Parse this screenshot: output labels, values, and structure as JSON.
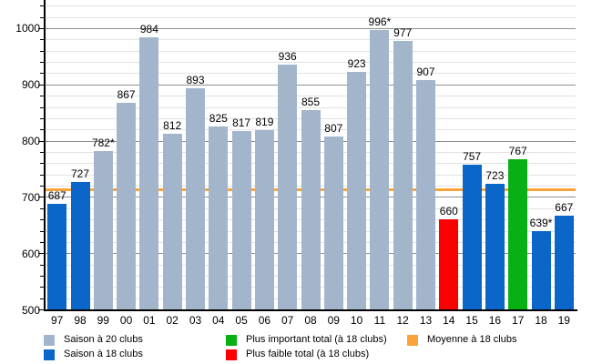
{
  "chart_data": {
    "type": "bar",
    "title": "",
    "xlabel": "",
    "ylabel": "",
    "categories": [
      "97",
      "98",
      "99",
      "00",
      "01",
      "02",
      "03",
      "04",
      "05",
      "06",
      "07",
      "08",
      "09",
      "10",
      "11",
      "12",
      "13",
      "14",
      "15",
      "16",
      "17",
      "18",
      "19"
    ],
    "values": [
      687,
      727,
      782,
      867,
      984,
      812,
      893,
      825,
      817,
      819,
      936,
      855,
      807,
      923,
      996,
      977,
      907,
      660,
      757,
      723,
      767,
      639,
      667
    ],
    "bar_labels": [
      "687",
      "727",
      "782*",
      "867",
      "984",
      "812",
      "893",
      "825",
      "817",
      "819",
      "936",
      "855",
      "807",
      "923",
      "996*",
      "977",
      "907",
      "660",
      "757",
      "723",
      "767",
      "639*",
      "667"
    ],
    "bar_types": [
      "c18",
      "c18",
      "c20",
      "c20",
      "c20",
      "c20",
      "c20",
      "c20",
      "c20",
      "c20",
      "c20",
      "c20",
      "c20",
      "c20",
      "c20",
      "c20",
      "c20",
      "worst",
      "c18",
      "c18",
      "best",
      "c18",
      "c18"
    ],
    "y_axis": {
      "min": 500,
      "max": 1050,
      "major_step": 100,
      "minor_step": 20,
      "tick_labels": [
        "500",
        "600",
        "700",
        "800",
        "900",
        "1000"
      ]
    },
    "average_line": {
      "value": 713,
      "label": "Moyenne à 18 clubs"
    },
    "colors": {
      "c20": "#a2b5cb",
      "c18": "#0a66c8",
      "best": "#09b013",
      "worst": "#fa0000",
      "average": "#f9a43b"
    },
    "grid": true,
    "legend_position": "bottom"
  },
  "legend": {
    "items": [
      {
        "label": "Saison à 20 clubs",
        "color_key": "c20"
      },
      {
        "label": "Saison à 18 clubs",
        "color_key": "c18"
      },
      {
        "label": "Plus important total (à 18 clubs)",
        "color_key": "best"
      },
      {
        "label": "Plus faible total (à 18 clubs)",
        "color_key": "worst"
      },
      {
        "label": "Moyenne à 18 clubs",
        "color_key": "average"
      }
    ]
  }
}
